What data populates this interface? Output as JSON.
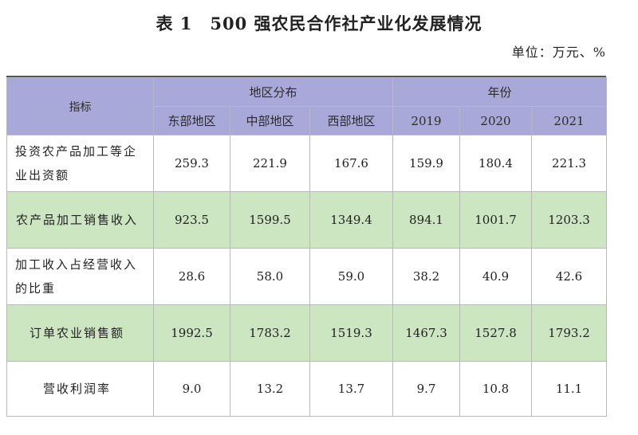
{
  "title": {
    "number": "表 1",
    "text": "500 强农民合作社产业化发展情况"
  },
  "unit": "单位：万元、%",
  "header": {
    "indicator": "指标",
    "region_group": "地区分布",
    "year_group": "年份",
    "columns": [
      "东部地区",
      "中部地区",
      "西部地区",
      "2019",
      "2020",
      "2021"
    ]
  },
  "rows": [
    {
      "label": "投资农产品加工等企业出资额",
      "values": [
        "259.3",
        "221.9",
        "167.6",
        "159.9",
        "180.4",
        "221.3"
      ]
    },
    {
      "label": "农产品加工销售收入",
      "values": [
        "923.5",
        "1599.5",
        "1349.4",
        "894.1",
        "1001.7",
        "1203.3"
      ]
    },
    {
      "label": "加工收入占经营收入的比重",
      "values": [
        "28.6",
        "58.0",
        "59.0",
        "38.2",
        "40.9",
        "42.6"
      ]
    },
    {
      "label": "订单农业销售额",
      "values": [
        "1992.5",
        "1783.2",
        "1519.3",
        "1467.3",
        "1527.8",
        "1793.2"
      ]
    },
    {
      "label": "营收利润率",
      "values": [
        "9.0",
        "13.2",
        "13.7",
        "9.7",
        "10.8",
        "11.1"
      ]
    }
  ],
  "colors": {
    "header_bg": "#a9a9d9",
    "highlight_row_bg": "#cbe6c0",
    "border": "#b9b9b9"
  }
}
